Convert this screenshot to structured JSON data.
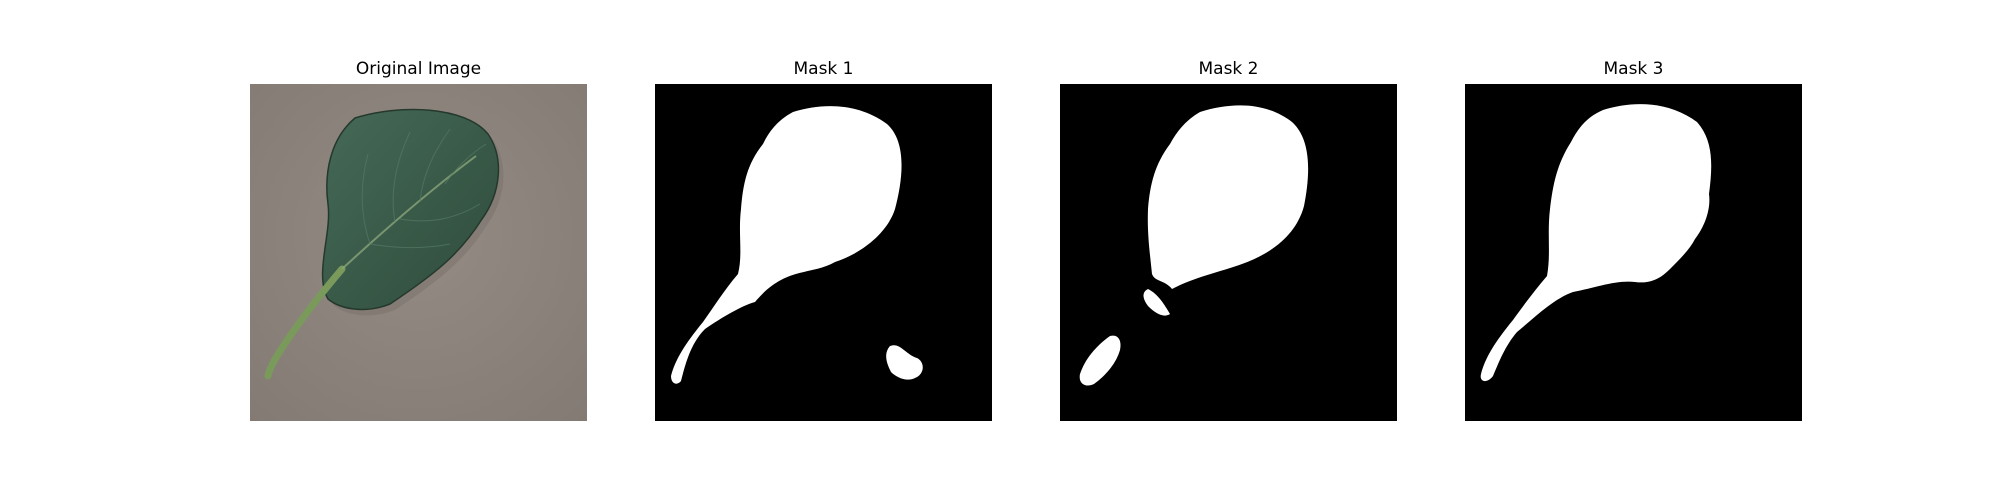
{
  "figure": {
    "panels": [
      {
        "title": "Original Image",
        "kind": "photo"
      },
      {
        "title": "Mask 1",
        "kind": "mask"
      },
      {
        "title": "Mask 2",
        "kind": "mask"
      },
      {
        "title": "Mask 3",
        "kind": "mask"
      }
    ]
  },
  "colors": {
    "background": "#ffffff",
    "mask_background": "#000000",
    "mask_foreground": "#ffffff",
    "photo_surface": "#8f8580",
    "leaf": "#3b5a47",
    "stem": "#7a9a5c"
  }
}
